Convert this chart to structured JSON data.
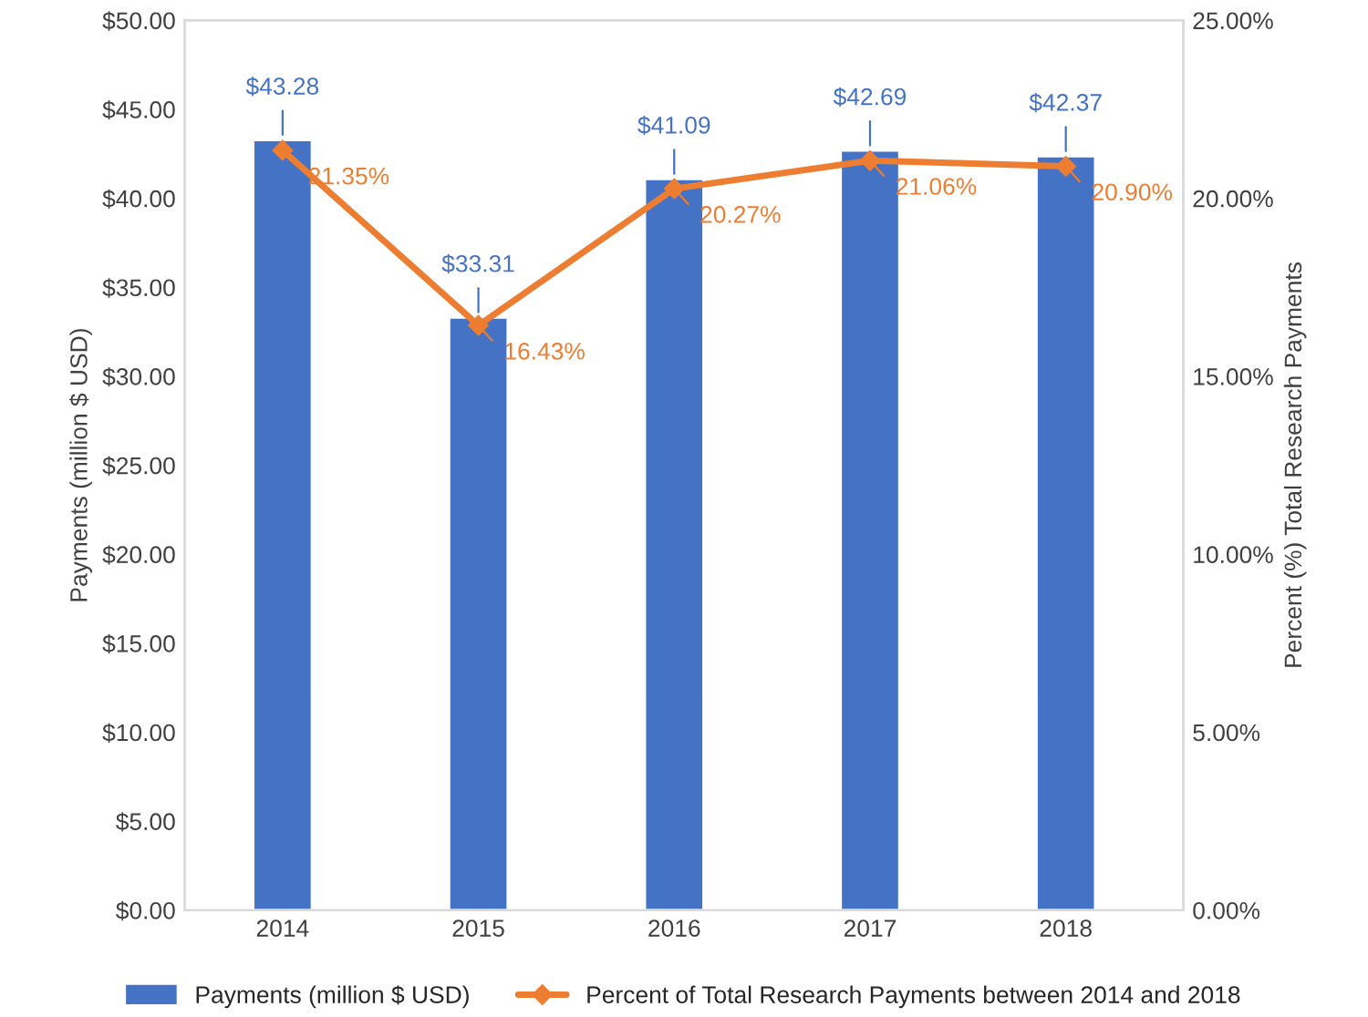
{
  "chart_data": {
    "type": "bar",
    "categories": [
      "2014",
      "2015",
      "2016",
      "2017",
      "2018"
    ],
    "ylabel": "Payments (million $ USD)",
    "y2label": "Percent (%) Total Research Payments",
    "series": [
      {
        "name": "Payments (million $ USD)",
        "color": "#4472c4",
        "values": [
          43.28,
          33.31,
          41.09,
          42.69,
          42.37
        ],
        "value_labels": [
          "$43.28",
          "$33.31",
          "$41.09",
          "$42.69",
          "$42.37"
        ]
      },
      {
        "name": "Percent of Total Research Payments between 2014 and 2018",
        "type": "line",
        "axis": "y2",
        "color": "#ed7d31",
        "marker": "diamond",
        "line_style": "solid",
        "values": [
          21.35,
          16.43,
          20.27,
          21.06,
          20.9
        ],
        "value_labels": [
          "21.35%",
          "16.43%",
          "20.27%",
          "21.06%",
          "20.90%"
        ]
      }
    ],
    "ylim": [
      0,
      50
    ],
    "yticks": [
      {
        "value": 0,
        "label": "$0.00"
      },
      {
        "value": 5,
        "label": "$5.00"
      },
      {
        "value": 10,
        "label": "$10.00"
      },
      {
        "value": 15,
        "label": "$15.00"
      },
      {
        "value": 20,
        "label": "$20.00"
      },
      {
        "value": 25,
        "label": "$25.00"
      },
      {
        "value": 30,
        "label": "$30.00"
      },
      {
        "value": 35,
        "label": "$35.00"
      },
      {
        "value": 40,
        "label": "$40.00"
      },
      {
        "value": 45,
        "label": "$45.00"
      },
      {
        "value": 50,
        "label": "$50.00"
      }
    ],
    "y2lim": [
      0,
      25
    ],
    "y2ticks": [
      {
        "value": 0,
        "label": "0.00%"
      },
      {
        "value": 5,
        "label": "5.00%"
      },
      {
        "value": 10,
        "label": "10.00%"
      },
      {
        "value": 15,
        "label": "15.00%"
      },
      {
        "value": 20,
        "label": "20.00%"
      },
      {
        "value": 25,
        "label": "25.00%"
      }
    ],
    "grid": false,
    "legend": "bottom"
  }
}
